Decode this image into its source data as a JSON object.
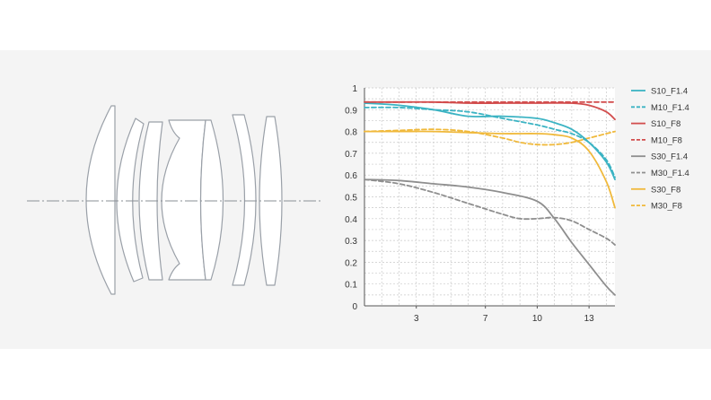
{
  "diagram": {
    "description_icon": "lens-element-diagram"
  },
  "chart_data": {
    "type": "line",
    "title": "",
    "xlabel": "",
    "ylabel": "",
    "xlim": [
      0,
      14.5
    ],
    "ylim": [
      0,
      1
    ],
    "xticks": [
      3,
      7,
      10,
      13
    ],
    "yticks": [
      0,
      0.1,
      0.2,
      0.3,
      0.4,
      0.5,
      0.6,
      0.7,
      0.8,
      0.9,
      1
    ],
    "ytick_labels": [
      "0",
      "0.1",
      "0.2",
      "0.3",
      "0.4",
      "0.5",
      "0.6",
      "0.7",
      "0.8",
      "0.9",
      "1"
    ],
    "xtick_labels": [
      "3",
      "7",
      "10",
      "13"
    ],
    "grid": true,
    "legend_position": "right",
    "series": [
      {
        "name": "S10_F1.4",
        "color": "#3bb3c3",
        "dash": false,
        "x": [
          0,
          2,
          4,
          6,
          8,
          10,
          11,
          12,
          13,
          14,
          14.5
        ],
        "y": [
          0.93,
          0.92,
          0.9,
          0.87,
          0.87,
          0.86,
          0.84,
          0.81,
          0.75,
          0.66,
          0.58
        ]
      },
      {
        "name": "M10_F1.4",
        "color": "#3bb3c3",
        "dash": true,
        "x": [
          0,
          2,
          4,
          6,
          8,
          10,
          11,
          12,
          13,
          14,
          14.5
        ],
        "y": [
          0.91,
          0.91,
          0.9,
          0.89,
          0.86,
          0.83,
          0.81,
          0.79,
          0.75,
          0.67,
          0.59
        ]
      },
      {
        "name": "S10_F8",
        "color": "#d24d4d",
        "dash": false,
        "x": [
          0,
          2,
          4,
          6,
          8,
          10,
          12,
          13,
          14,
          14.5
        ],
        "y": [
          0.935,
          0.935,
          0.935,
          0.93,
          0.93,
          0.93,
          0.93,
          0.92,
          0.89,
          0.855
        ]
      },
      {
        "name": "M10_F8",
        "color": "#d24d4d",
        "dash": true,
        "x": [
          0,
          2,
          4,
          6,
          8,
          10,
          12,
          13,
          14,
          14.5
        ],
        "y": [
          0.935,
          0.935,
          0.935,
          0.935,
          0.935,
          0.935,
          0.935,
          0.935,
          0.935,
          0.935
        ]
      },
      {
        "name": "S30_F1.4",
        "color": "#8e8e8e",
        "dash": false,
        "x": [
          0,
          2,
          4,
          6,
          8,
          10,
          11,
          12,
          13,
          14,
          14.5
        ],
        "y": [
          0.58,
          0.575,
          0.56,
          0.545,
          0.52,
          0.48,
          0.4,
          0.29,
          0.19,
          0.09,
          0.05
        ]
      },
      {
        "name": "M30_F1.4",
        "color": "#8e8e8e",
        "dash": true,
        "x": [
          0,
          2,
          4,
          6,
          8,
          9,
          10,
          11,
          12,
          13,
          14,
          14.5
        ],
        "y": [
          0.58,
          0.56,
          0.52,
          0.47,
          0.42,
          0.4,
          0.4,
          0.405,
          0.39,
          0.35,
          0.31,
          0.28
        ]
      },
      {
        "name": "S30_F8",
        "color": "#f0b93b",
        "dash": false,
        "x": [
          0,
          2,
          4,
          6,
          8,
          10,
          11,
          12,
          13,
          14,
          14.5
        ],
        "y": [
          0.8,
          0.8,
          0.8,
          0.795,
          0.79,
          0.79,
          0.785,
          0.77,
          0.71,
          0.57,
          0.45
        ]
      },
      {
        "name": "M30_F8",
        "color": "#f0b93b",
        "dash": true,
        "x": [
          0,
          2,
          4,
          6,
          8,
          9,
          10,
          11,
          12,
          13,
          14,
          14.5
        ],
        "y": [
          0.8,
          0.805,
          0.81,
          0.8,
          0.77,
          0.75,
          0.74,
          0.74,
          0.75,
          0.77,
          0.79,
          0.8
        ]
      }
    ]
  }
}
